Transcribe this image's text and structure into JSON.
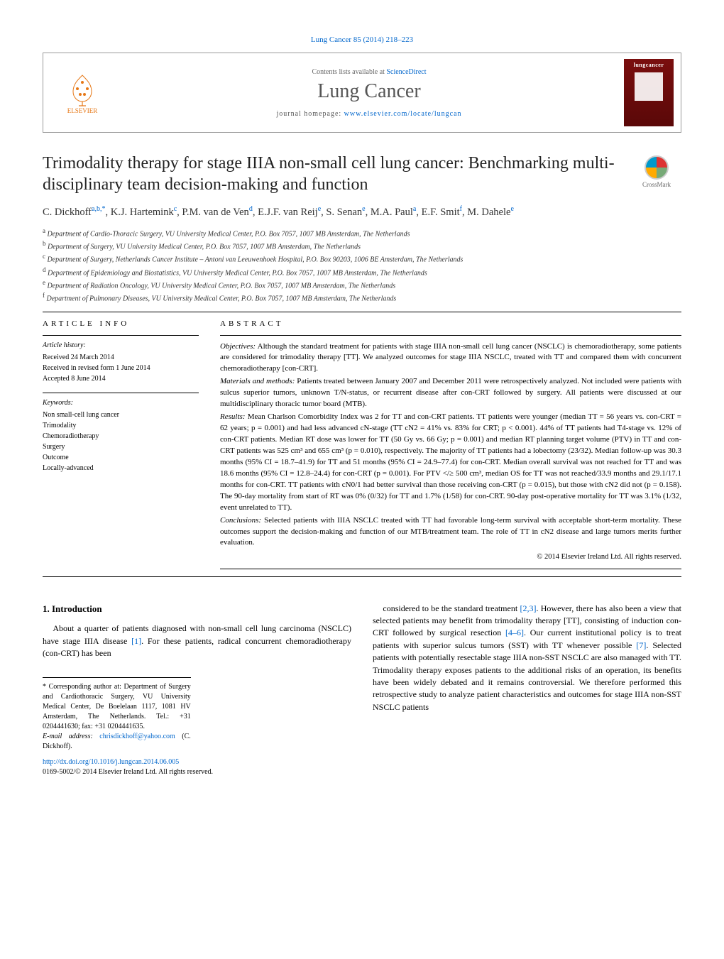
{
  "journal_ref": "Lung Cancer 85 (2014) 218–223",
  "header": {
    "contents_prefix": "Contents lists available at ",
    "contents_link": "ScienceDirect",
    "journal_name": "Lung Cancer",
    "homepage_prefix": "journal homepage: ",
    "homepage_url": "www.elsevier.com/locate/lungcan",
    "publisher": "ELSEVIER",
    "cover_label": "lungcancer"
  },
  "crossmark": "CrossMark",
  "title": "Trimodality therapy for stage IIIA non-small cell lung cancer: Benchmarking multi-disciplinary team decision-making and function",
  "authors_html": "C. Dickhoff<sup>a,b,*</sup>, K.J. Hartemink<sup>c</sup>, P.M. van de Ven<sup>d</sup>, E.J.F. van Reij<sup>e</sup>, S. Senan<sup>e</sup>, M.A. Paul<sup>a</sup>, E.F. Smit<sup>f</sup>, M. Dahele<sup>e</sup>",
  "affiliations": [
    {
      "sup": "a",
      "text": "Department of Cardio-Thoracic Surgery, VU University Medical Center, P.O. Box 7057, 1007 MB Amsterdam, The Netherlands"
    },
    {
      "sup": "b",
      "text": "Department of Surgery, VU University Medical Center, P.O. Box 7057, 1007 MB Amsterdam, The Netherlands"
    },
    {
      "sup": "c",
      "text": "Department of Surgery, Netherlands Cancer Institute – Antoni van Leeuwenhoek Hospital, P.O. Box 90203, 1006 BE Amsterdam, The Netherlands"
    },
    {
      "sup": "d",
      "text": "Department of Epidemiology and Biostatistics, VU University Medical Center, P.O. Box 7057, 1007 MB Amsterdam, The Netherlands"
    },
    {
      "sup": "e",
      "text": "Department of Radiation Oncology, VU University Medical Center, P.O. Box 7057, 1007 MB Amsterdam, The Netherlands"
    },
    {
      "sup": "f",
      "text": "Department of Pulmonary Diseases, VU University Medical Center, P.O. Box 7057, 1007 MB Amsterdam, The Netherlands"
    }
  ],
  "article_info": {
    "head": "ARTICLE INFO",
    "history_label": "Article history:",
    "history": [
      "Received 24 March 2014",
      "Received in revised form 1 June 2014",
      "Accepted 8 June 2014"
    ],
    "keywords_label": "Keywords:",
    "keywords": [
      "Non small-cell lung cancer",
      "Trimodality",
      "Chemoradiotherapy",
      "Surgery",
      "Outcome",
      "Locally-advanced"
    ]
  },
  "abstract": {
    "head": "ABSTRACT",
    "objectives_label": "Objectives:",
    "objectives": "Although the standard treatment for patients with stage IIIA non-small cell lung cancer (NSCLC) is chemoradiotherapy, some patients are considered for trimodality therapy [TT]. We analyzed outcomes for stage IIIA NSCLC, treated with TT and compared them with concurrent chemoradiotherapy [con-CRT].",
    "methods_label": "Materials and methods:",
    "methods": "Patients treated between January 2007 and December 2011 were retrospectively analyzed. Not included were patients with sulcus superior tumors, unknown T/N-status, or recurrent disease after con-CRT followed by surgery. All patients were discussed at our multidisciplinary thoracic tumor board (MTB).",
    "results_label": "Results:",
    "results": "Mean Charlson Comorbidity Index was 2 for TT and con-CRT patients. TT patients were younger (median TT = 56 years vs. con-CRT = 62 years; p = 0.001) and had less advanced cN-stage (TT cN2 = 41% vs. 83% for CRT; p < 0.001). 44% of TT patients had T4-stage vs. 12% of con-CRT patients. Median RT dose was lower for TT (50 Gy vs. 66 Gy; p = 0.001) and median RT planning target volume (PTV) in TT and con-CRT patients was 525 cm³ and 655 cm³ (p = 0.010), respectively. The majority of TT patients had a lobectomy (23/32). Median follow-up was 30.3 months (95% CI = 18.7–41.9) for TT and 51 months (95% CI = 24.9–77.4) for con-CRT. Median overall survival was not reached for TT and was 18.6 months (95% CI = 12.8–24.4) for con-CRT (p = 0.001). For PTV </≥ 500 cm³, median OS for TT was not reached/33.9 months and 29.1/17.1 months for con-CRT. TT patients with cN0/1 had better survival than those receiving con-CRT (p = 0.015), but those with cN2 did not (p = 0.158). The 90-day mortality from start of RT was 0% (0/32) for TT and 1.7% (1/58) for con-CRT. 90-day post-operative mortality for TT was 3.1% (1/32, event unrelated to TT).",
    "conclusions_label": "Conclusions:",
    "conclusions": "Selected patients with IIIA NSCLC treated with TT had favorable long-term survival with acceptable short-term mortality. These outcomes support the decision-making and function of our MTB/treatment team. The role of TT in cN2 disease and large tumors merits further evaluation.",
    "copyright": "© 2014 Elsevier Ireland Ltd. All rights reserved."
  },
  "intro": {
    "head": "1. Introduction",
    "col1": "About a quarter of patients diagnosed with non-small cell lung carcinoma (NSCLC) have stage IIIA disease [1]. For these patients, radical concurrent chemoradiotherapy (con-CRT) has been",
    "col2": "considered to be the standard treatment [2,3]. However, there has also been a view that selected patients may benefit from trimodality therapy [TT], consisting of induction con-CRT followed by surgical resection [4–6]. Our current institutional policy is to treat patients with superior sulcus tumors (SST) with TT whenever possible [7]. Selected patients with potentially resectable stage IIIA non-SST NSCLC are also managed with TT. Trimodality therapy exposes patients to the additional risks of an operation, its benefits have been widely debated and it remains controversial. We therefore performed this retrospective study to analyze patient characteristics and outcomes for stage IIIA non-SST NSCLC patients"
  },
  "footnotes": {
    "corr": "* Corresponding author at: Department of Surgery and Cardiothoracic Surgery, VU University Medical Center, De Boelelaan 1117, 1081 HV Amsterdam, The Netherlands. Tel.: +31 0204441630; fax: +31 0204441635.",
    "email_label": "E-mail address: ",
    "email": "chrisdickhoff@yahoo.com",
    "email_suffix": " (C. Dickhoff).",
    "doi_url": "http://dx.doi.org/10.1016/j.lungcan.2014.06.005",
    "issn": "0169-5002/© 2014 Elsevier Ireland Ltd. All rights reserved."
  },
  "style": {
    "link_color": "#0066cc",
    "elsevier_orange": "#e67817",
    "cover_bg": "#7a0e0e"
  }
}
